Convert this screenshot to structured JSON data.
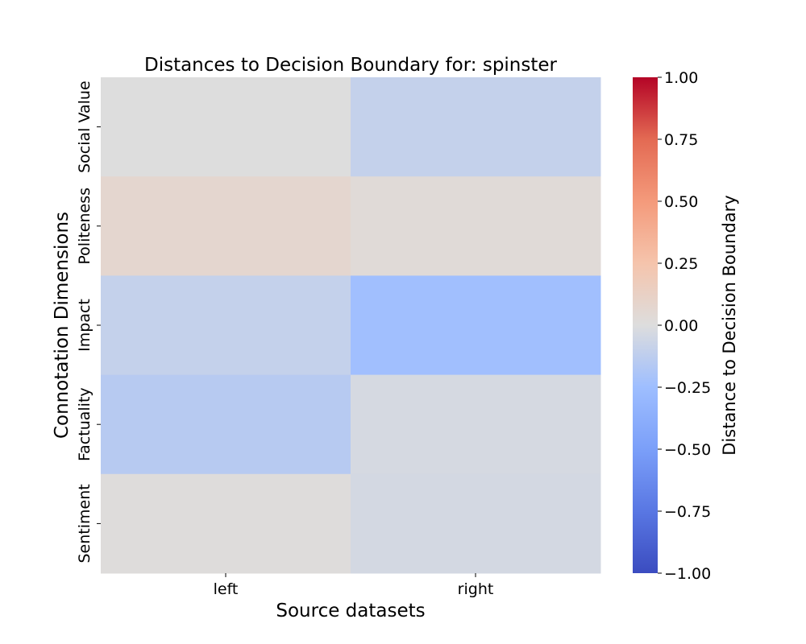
{
  "chart_data": {
    "type": "heatmap",
    "title": "Distances to Decision Boundary for: spinster",
    "xlabel": "Source datasets",
    "ylabel": "Connotation Dimensions",
    "x_categories": [
      "left",
      "right"
    ],
    "y_categories": [
      "Social Value",
      "Politeness",
      "Impact",
      "Factuality",
      "Sentiment"
    ],
    "values": [
      [
        0.0,
        -0.1
      ],
      [
        0.07,
        0.03
      ],
      [
        -0.1,
        -0.24
      ],
      [
        -0.15,
        -0.03
      ],
      [
        0.01,
        -0.04
      ]
    ],
    "colorbar": {
      "label": "Distance to Decision Boundary",
      "range": [
        -1.0,
        1.0
      ],
      "ticks": [
        1.0,
        0.75,
        0.5,
        0.25,
        0.0,
        -0.25,
        -0.5,
        -0.75,
        -1.0
      ],
      "tick_labels": [
        "1.00",
        "0.75",
        "0.50",
        "0.25",
        "0.00",
        "−0.25",
        "−0.50",
        "−0.75",
        "−1.00"
      ],
      "colormap": "coolwarm"
    },
    "colors": {
      "low": "#3b4cc0",
      "mid": "#dddddd",
      "high": "#b40426"
    }
  }
}
